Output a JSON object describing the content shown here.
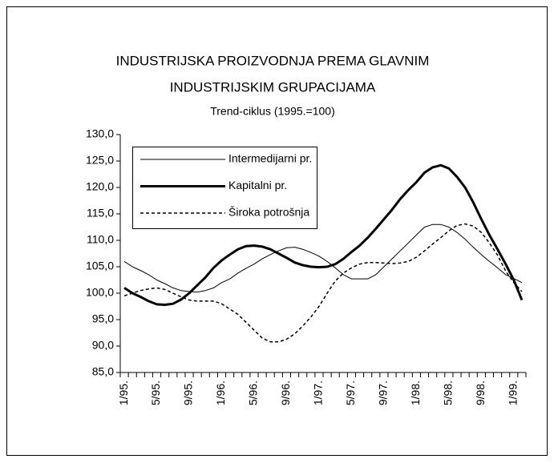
{
  "chart_data": {
    "type": "line",
    "title": [
      "INDUSTRIJSKA PROIZVODNJA PREMA GLAVNIM",
      "INDUSTRIJSKIM GRUPACIJAMA"
    ],
    "subtitle": "Trend-ciklus (1995.=100)",
    "categories": [
      "1/95.",
      null,
      null,
      null,
      "5/95.",
      null,
      null,
      null,
      "9/95.",
      null,
      null,
      null,
      "1/96.",
      null,
      null,
      null,
      "5/96.",
      null,
      null,
      null,
      "9/96.",
      null,
      null,
      null,
      "1/97.",
      null,
      null,
      null,
      "5/97.",
      null,
      null,
      null,
      "9/97.",
      null,
      null,
      null,
      "1/98.",
      null,
      null,
      null,
      "5/98.",
      null,
      null,
      null,
      "9/98.",
      null,
      null,
      null,
      "1/99.",
      null
    ],
    "ylim": [
      85,
      130
    ],
    "yticks": [
      {
        "value": 85,
        "label": "85,0"
      },
      {
        "value": 90,
        "label": "90,0"
      },
      {
        "value": 95,
        "label": "95,0"
      },
      {
        "value": 100,
        "label": "100,0"
      },
      {
        "value": 105,
        "label": "105,0"
      },
      {
        "value": 110,
        "label": "110,0"
      },
      {
        "value": 115,
        "label": "115,0"
      },
      {
        "value": 120,
        "label": "120,0"
      },
      {
        "value": 125,
        "label": "125,0"
      },
      {
        "value": 130,
        "label": "130,0"
      }
    ],
    "grid": false,
    "legend": "upper-left",
    "series": [
      {
        "name": "Intermedijarni pr.",
        "color": "#000000",
        "line_width": 1,
        "dash": "solid",
        "values": [
          106,
          105,
          104.3,
          103.5,
          102.5,
          101.8,
          101,
          100.5,
          100.3,
          100.2,
          100.5,
          101,
          102,
          102.7,
          103.8,
          104.7,
          105.5,
          106.5,
          107.3,
          108,
          108.6,
          108.7,
          108.3,
          107.7,
          107,
          106,
          104.8,
          103.5,
          102.7,
          102.7,
          102.7,
          103.5,
          105,
          106.5,
          108,
          109.5,
          111,
          112.5,
          113,
          113,
          112.5,
          111.5,
          110.2,
          108.7,
          107.3,
          106,
          104.8,
          103.5,
          102.8,
          102
        ]
      },
      {
        "name": "Kapitalni pr.",
        "color": "#000000",
        "line_width": 3,
        "dash": "solid",
        "values": [
          101,
          100,
          99.3,
          98.5,
          97.9,
          97.8,
          98,
          98.8,
          100,
          101.5,
          103,
          104.8,
          106.2,
          107.3,
          108.3,
          108.9,
          109,
          108.8,
          108.3,
          107.5,
          106.7,
          105.8,
          105.3,
          105,
          104.9,
          105,
          105.5,
          106.5,
          107.8,
          109,
          110.5,
          112.2,
          114,
          115.8,
          117.8,
          119.5,
          121,
          122.8,
          123.8,
          124.2,
          123.6,
          122,
          120,
          117.2,
          114,
          111,
          108.3,
          105.5,
          102.5,
          98.7
        ]
      },
      {
        "name": "Široka potrošnja",
        "color": "#000000",
        "line_width": 1.5,
        "dash": "dashed",
        "values": [
          99.5,
          100,
          100.5,
          100.8,
          101,
          100.7,
          100,
          99.3,
          98.7,
          98.5,
          98.5,
          98.5,
          98,
          97,
          96,
          94.5,
          93,
          91.5,
          90.8,
          90.8,
          91.3,
          92.3,
          93.8,
          95.5,
          97.5,
          100,
          102.3,
          103.8,
          104.8,
          105.5,
          105.8,
          105.8,
          105.7,
          105.6,
          105.7,
          106,
          106.8,
          108,
          109.3,
          110.5,
          111.8,
          112.8,
          113.1,
          112.7,
          111.5,
          109.5,
          107.2,
          104.2,
          102,
          100.3
        ]
      }
    ]
  }
}
